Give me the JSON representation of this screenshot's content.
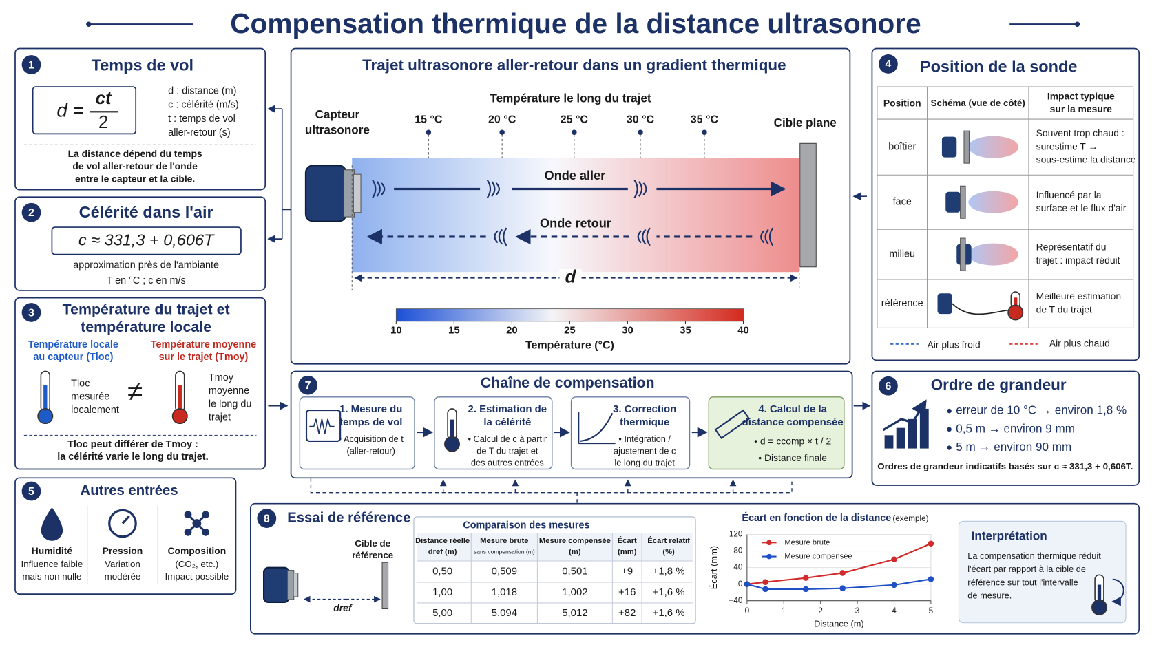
{
  "title": "Compensation thermique de la distance ultrasonore",
  "p1": {
    "badge": "1",
    "title": "Temps de vol",
    "lhs": "d =",
    "num": "ct",
    "den": "2",
    "legend": [
      "d : distance (m)",
      "c : célérité (m/s)",
      "t : temps de vol",
      "aller-retour (s)"
    ],
    "note": [
      "La distance dépend du temps",
      "de vol aller-retour de l'onde",
      "entre le capteur et la cible."
    ]
  },
  "p2": {
    "badge": "2",
    "title": "Célérité dans l'air",
    "formula": "c ≈ 331,3 + 0,606T",
    "note": [
      "approximation près de l'ambiante",
      "T en °C ; c en m/s"
    ]
  },
  "p3": {
    "badge": "3",
    "title": [
      "Température du trajet et",
      "température locale"
    ],
    "left": [
      "Température locale",
      "au capteur (Tloc)"
    ],
    "right": [
      "Température moyenne",
      "sur le trajet (Tmoy)"
    ],
    "left_desc": [
      "Tloc",
      "mesurée",
      "localement"
    ],
    "right_desc": [
      "Tmoy",
      "moyenne",
      "le long du",
      "trajet"
    ],
    "symbol": "≠",
    "note": [
      "Tloc peut différer de Tmoy :",
      "la célérité varie le long du trajet."
    ]
  },
  "center": {
    "title": "Trajet ultrasonore aller-retour dans un gradient thermique",
    "sensor": [
      "Capteur",
      "ultrasonore"
    ],
    "target": "Cible plane",
    "temp_title": "Température le long du trajet",
    "temps": [
      "15 °C",
      "20 °C",
      "25 °C",
      "30 °C",
      "35 °C"
    ],
    "forward": "Onde aller",
    "back": "Onde retour",
    "d": "d",
    "colorbar": {
      "label": "Température (°C)",
      "lim": [
        10,
        40
      ],
      "ticks": [
        10,
        15,
        20,
        25,
        30,
        35,
        40
      ]
    }
  },
  "p4": {
    "badge": "4",
    "title": "Position de la sonde",
    "headers": [
      "Position",
      "Schéma (vue de côté)",
      [
        "Impact typique",
        "sur la mesure"
      ]
    ],
    "rows": [
      {
        "position": "boîtier",
        "impact": [
          "Souvent trop chaud :",
          "surestime T →",
          "sous-estime la distance"
        ]
      },
      {
        "position": "face",
        "impact": [
          "Influencé par la",
          "surface et le flux d'air"
        ]
      },
      {
        "position": "milieu",
        "impact": [
          "Représentatif du",
          "trajet : impact réduit"
        ]
      },
      {
        "position": "référence",
        "impact": [
          "Meilleure estimation",
          "de T du trajet"
        ]
      }
    ],
    "legend": [
      "Air plus froid",
      "Air plus chaud"
    ]
  },
  "p5": {
    "badge": "5",
    "title": "Autres entrées",
    "items": [
      {
        "name": "Humidité",
        "desc": [
          "Influence faible",
          "mais non nulle"
        ]
      },
      {
        "name": "Pression",
        "desc": [
          "Variation",
          "modérée"
        ]
      },
      {
        "name": "Composition",
        "desc": [
          "(CO₂, etc.)",
          "Impact possible"
        ]
      }
    ]
  },
  "p6": {
    "badge": "6",
    "title": "Ordre de grandeur",
    "bullets": [
      "erreur de 10 °C → environ 1,8 %",
      "0,5 m → environ 9 mm",
      "5 m → environ 90 mm"
    ],
    "note": "Ordres de grandeur indicatifs basés sur c ≈ 331,3 + 0,606T."
  },
  "p7": {
    "badge": "7",
    "title": "Chaîne de compensation",
    "steps": [
      {
        "title": [
          "1. Mesure du",
          "temps de vol"
        ],
        "desc": [
          "• Acquisition de t",
          "(aller-retour)"
        ]
      },
      {
        "title": [
          "2. Estimation de",
          "la célérité"
        ],
        "desc": [
          "• Calcul de c à partir",
          "de T du trajet et",
          "des autres entrées"
        ]
      },
      {
        "title": [
          "3. Correction",
          "thermique"
        ],
        "desc": [
          "• Intégration /",
          "ajustement de c",
          "le long du trajet"
        ]
      },
      {
        "title": [
          "4. Calcul de la",
          "distance compensée"
        ],
        "desc": [
          "• d = ccomp × t / 2",
          "• Distance finale"
        ]
      }
    ]
  },
  "p8": {
    "badge": "8",
    "title": "Essai de référence",
    "target": [
      "Cible de",
      "référence"
    ],
    "dref": "dref",
    "table_title": "Comparaison des mesures",
    "headers": [
      [
        "Distance réelle",
        "dref (m)"
      ],
      [
        "Mesure brute",
        "sans compensation (m)"
      ],
      [
        "Mesure compensée",
        "(m)"
      ],
      [
        "Écart",
        "(mm)"
      ],
      [
        "Écart relatif",
        "(%)"
      ]
    ],
    "rows": [
      [
        "0,50",
        "0,509",
        "0,501",
        "+9",
        "+1,8 %"
      ],
      [
        "1,00",
        "1,018",
        "1,002",
        "+16",
        "+1,6 %"
      ],
      [
        "5,00",
        "5,094",
        "5,012",
        "+82",
        "+1,6 %"
      ]
    ],
    "interp_title": "Interprétation",
    "interp": [
      "La compensation thermique réduit",
      "l'écart par rapport à la cible de",
      "référence sur tout l'intervalle",
      "de mesure."
    ]
  },
  "chart_data": {
    "type": "line",
    "title": "Écart en fonction de la distance",
    "subtitle": "(exemple)",
    "x_label": "Distance (m)",
    "y_label": "Écart (mm)",
    "x": [
      0,
      0.5,
      1.6,
      2.6,
      4,
      5
    ],
    "series": [
      {
        "name": "Mesure brute",
        "color": "#d22b2b",
        "values": [
          0,
          5,
          15,
          27,
          60,
          98
        ]
      },
      {
        "name": "Mesure compensée",
        "color": "#1f4fc4",
        "values": [
          0,
          -12,
          -12,
          -10,
          -2,
          12
        ]
      }
    ],
    "xlim": [
      0,
      5
    ],
    "xticks": [
      0,
      1,
      2,
      3,
      4,
      5
    ],
    "ylim": [
      -40,
      120
    ],
    "yticks": [
      {
        "value": -40,
        "label": "−40"
      },
      0,
      40,
      80,
      120
    ]
  }
}
